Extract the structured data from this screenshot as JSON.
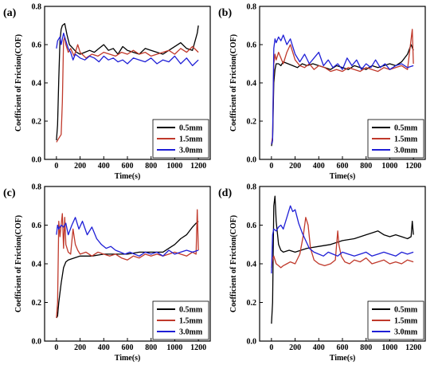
{
  "chart_data": [
    {
      "type": "line",
      "panel_label": "(a)",
      "xlabel": "Time(s)",
      "ylabel": "Coefficient of Friction(COF)",
      "xlim": [
        -100,
        1300
      ],
      "ylim": [
        0.0,
        0.8
      ],
      "xticks": [
        0,
        200,
        400,
        600,
        800,
        1000,
        1200
      ],
      "yticks": [
        0.0,
        0.2,
        0.4,
        0.6,
        0.8
      ],
      "legend_position": "bottom-right",
      "series": [
        {
          "name": "0.5mm",
          "color": "#000000",
          "x": [
            0,
            10,
            20,
            30,
            40,
            50,
            70,
            90,
            110,
            140,
            170,
            200,
            240,
            280,
            320,
            360,
            400,
            440,
            480,
            520,
            560,
            600,
            650,
            700,
            750,
            800,
            850,
            900,
            950,
            1000,
            1050,
            1100,
            1150,
            1190,
            1200
          ],
          "y": [
            0.1,
            0.18,
            0.42,
            0.62,
            0.68,
            0.7,
            0.71,
            0.65,
            0.6,
            0.58,
            0.56,
            0.55,
            0.56,
            0.57,
            0.56,
            0.58,
            0.6,
            0.57,
            0.58,
            0.55,
            0.59,
            0.57,
            0.56,
            0.55,
            0.58,
            0.57,
            0.56,
            0.55,
            0.57,
            0.59,
            0.61,
            0.58,
            0.57,
            0.66,
            0.7
          ]
        },
        {
          "name": "1.5mm",
          "color": "#c0392b",
          "x": [
            0,
            20,
            40,
            50,
            60,
            70,
            80,
            100,
            120,
            150,
            180,
            200,
            250,
            300,
            350,
            400,
            450,
            500,
            550,
            600,
            650,
            700,
            750,
            800,
            850,
            900,
            950,
            1000,
            1050,
            1100,
            1150,
            1200
          ],
          "y": [
            0.09,
            0.11,
            0.13,
            0.3,
            0.62,
            0.64,
            0.6,
            0.56,
            0.58,
            0.54,
            0.6,
            0.56,
            0.53,
            0.55,
            0.54,
            0.56,
            0.55,
            0.54,
            0.56,
            0.55,
            0.57,
            0.55,
            0.56,
            0.54,
            0.55,
            0.56,
            0.57,
            0.55,
            0.58,
            0.56,
            0.59,
            0.56
          ]
        },
        {
          "name": "3.0mm",
          "color": "#1f1fd6",
          "x": [
            0,
            10,
            20,
            30,
            40,
            60,
            80,
            100,
            120,
            140,
            160,
            200,
            240,
            280,
            320,
            360,
            400,
            440,
            480,
            520,
            560,
            600,
            650,
            700,
            750,
            800,
            850,
            900,
            950,
            1000,
            1050,
            1100,
            1150,
            1200
          ],
          "y": [
            0.58,
            0.62,
            0.63,
            0.64,
            0.6,
            0.66,
            0.62,
            0.58,
            0.56,
            0.52,
            0.55,
            0.53,
            0.52,
            0.54,
            0.53,
            0.51,
            0.54,
            0.52,
            0.53,
            0.51,
            0.52,
            0.5,
            0.53,
            0.52,
            0.51,
            0.53,
            0.5,
            0.52,
            0.51,
            0.54,
            0.5,
            0.53,
            0.49,
            0.52
          ]
        }
      ]
    },
    {
      "type": "line",
      "panel_label": "(b)",
      "xlabel": "Time(s)",
      "ylabel": "Coefficient of Friction(COF)",
      "xlim": [
        -100,
        1300
      ],
      "ylim": [
        0.0,
        0.8
      ],
      "xticks": [
        0,
        200,
        400,
        600,
        800,
        1000,
        1200
      ],
      "yticks": [
        0.0,
        0.2,
        0.4,
        0.6,
        0.8
      ],
      "legend_position": "bottom-right",
      "series": [
        {
          "name": "0.5mm",
          "color": "#000000",
          "x": [
            0,
            10,
            20,
            30,
            40,
            60,
            80,
            100,
            140,
            180,
            220,
            260,
            300,
            350,
            400,
            450,
            500,
            550,
            600,
            650,
            700,
            750,
            800,
            850,
            900,
            950,
            1000,
            1050,
            1100,
            1150,
            1180,
            1200
          ],
          "y": [
            0.07,
            0.1,
            0.4,
            0.47,
            0.5,
            0.5,
            0.49,
            0.51,
            0.5,
            0.49,
            0.48,
            0.5,
            0.49,
            0.5,
            0.49,
            0.48,
            0.47,
            0.49,
            0.48,
            0.47,
            0.49,
            0.48,
            0.47,
            0.49,
            0.48,
            0.49,
            0.5,
            0.49,
            0.51,
            0.55,
            0.6,
            0.57
          ]
        },
        {
          "name": "1.5mm",
          "color": "#c0392b",
          "x": [
            0,
            10,
            20,
            30,
            40,
            60,
            80,
            100,
            130,
            160,
            200,
            240,
            280,
            320,
            360,
            400,
            450,
            500,
            550,
            600,
            650,
            700,
            750,
            800,
            850,
            900,
            950,
            1000,
            1050,
            1100,
            1150,
            1190,
            1200
          ],
          "y": [
            0.08,
            0.12,
            0.5,
            0.55,
            0.52,
            0.56,
            0.53,
            0.5,
            0.56,
            0.6,
            0.52,
            0.49,
            0.48,
            0.5,
            0.47,
            0.49,
            0.48,
            0.46,
            0.47,
            0.46,
            0.48,
            0.47,
            0.46,
            0.48,
            0.47,
            0.46,
            0.48,
            0.47,
            0.48,
            0.49,
            0.47,
            0.68,
            0.5
          ]
        },
        {
          "name": "3.0mm",
          "color": "#1f1fd6",
          "x": [
            0,
            10,
            20,
            30,
            40,
            60,
            80,
            100,
            130,
            160,
            200,
            240,
            280,
            320,
            360,
            400,
            440,
            480,
            520,
            560,
            600,
            640,
            680,
            720,
            760,
            800,
            840,
            880,
            920,
            960,
            1000,
            1050,
            1100,
            1150,
            1200
          ],
          "y": [
            0.08,
            0.1,
            0.58,
            0.63,
            0.61,
            0.64,
            0.62,
            0.65,
            0.6,
            0.63,
            0.55,
            0.51,
            0.55,
            0.5,
            0.53,
            0.56,
            0.49,
            0.52,
            0.48,
            0.5,
            0.47,
            0.53,
            0.49,
            0.52,
            0.47,
            0.5,
            0.48,
            0.52,
            0.48,
            0.5,
            0.47,
            0.49,
            0.5,
            0.48,
            0.49
          ]
        }
      ]
    },
    {
      "type": "line",
      "panel_label": "(c)",
      "xlabel": "Time(s)",
      "ylabel": "Coefficient of Friction(COF)",
      "xlim": [
        -100,
        1300
      ],
      "ylim": [
        0.0,
        0.8
      ],
      "xticks": [
        0,
        200,
        400,
        600,
        800,
        1000,
        1200
      ],
      "yticks": [
        0.0,
        0.2,
        0.4,
        0.6,
        0.8
      ],
      "legend_position": "bottom-right",
      "series": [
        {
          "name": "0.5mm",
          "color": "#000000",
          "x": [
            0,
            10,
            20,
            40,
            60,
            80,
            100,
            150,
            200,
            300,
            400,
            500,
            600,
            700,
            800,
            900,
            950,
            1000,
            1050,
            1100,
            1150,
            1180,
            1200
          ],
          "y": [
            0.12,
            0.13,
            0.2,
            0.3,
            0.38,
            0.41,
            0.42,
            0.43,
            0.44,
            0.44,
            0.45,
            0.45,
            0.45,
            0.46,
            0.46,
            0.46,
            0.48,
            0.5,
            0.53,
            0.55,
            0.59,
            0.61,
            0.62
          ]
        },
        {
          "name": "1.5mm",
          "color": "#c0392b",
          "x": [
            0,
            10,
            20,
            30,
            40,
            50,
            60,
            70,
            80,
            100,
            120,
            140,
            160,
            180,
            200,
            250,
            300,
            350,
            400,
            450,
            500,
            550,
            600,
            650,
            700,
            750,
            800,
            850,
            900,
            950,
            1000,
            1050,
            1100,
            1150,
            1180,
            1190,
            1200
          ],
          "y": [
            0.12,
            0.2,
            0.62,
            0.54,
            0.6,
            0.66,
            0.48,
            0.64,
            0.5,
            0.46,
            0.45,
            0.58,
            0.5,
            0.47,
            0.45,
            0.46,
            0.44,
            0.46,
            0.45,
            0.44,
            0.45,
            0.43,
            0.42,
            0.44,
            0.43,
            0.45,
            0.44,
            0.45,
            0.44,
            0.45,
            0.46,
            0.45,
            0.44,
            0.46,
            0.45,
            0.68,
            0.47
          ]
        },
        {
          "name": "3.0mm",
          "color": "#1f1fd6",
          "x": [
            0,
            10,
            20,
            40,
            60,
            80,
            100,
            130,
            160,
            190,
            220,
            260,
            300,
            340,
            380,
            420,
            460,
            500,
            540,
            580,
            620,
            660,
            700,
            750,
            800,
            850,
            900,
            950,
            1000,
            1050,
            1100,
            1150,
            1200
          ],
          "y": [
            0.55,
            0.6,
            0.58,
            0.6,
            0.59,
            0.61,
            0.55,
            0.6,
            0.64,
            0.58,
            0.62,
            0.55,
            0.59,
            0.53,
            0.5,
            0.48,
            0.49,
            0.47,
            0.46,
            0.45,
            0.46,
            0.45,
            0.44,
            0.46,
            0.45,
            0.46,
            0.44,
            0.47,
            0.45,
            0.46,
            0.47,
            0.46,
            0.47
          ]
        }
      ]
    },
    {
      "type": "line",
      "panel_label": "(d)",
      "xlabel": "Time(s)",
      "ylabel": "Coefficient of Friction(COF)",
      "xlim": [
        -100,
        1300
      ],
      "ylim": [
        0.0,
        0.8
      ],
      "xticks": [
        0,
        200,
        400,
        600,
        800,
        1000,
        1200
      ],
      "yticks": [
        0.0,
        0.2,
        0.4,
        0.6,
        0.8
      ],
      "legend_position": "bottom-right",
      "series": [
        {
          "name": "0.5mm",
          "color": "#000000",
          "x": [
            0,
            10,
            20,
            30,
            40,
            60,
            80,
            100,
            150,
            200,
            300,
            400,
            500,
            600,
            700,
            800,
            850,
            900,
            950,
            1000,
            1050,
            1100,
            1150,
            1180,
            1190,
            1200
          ],
          "y": [
            0.09,
            0.2,
            0.7,
            0.75,
            0.62,
            0.5,
            0.47,
            0.46,
            0.47,
            0.46,
            0.48,
            0.49,
            0.5,
            0.52,
            0.53,
            0.55,
            0.56,
            0.57,
            0.55,
            0.54,
            0.55,
            0.54,
            0.53,
            0.54,
            0.62,
            0.55
          ]
        },
        {
          "name": "1.5mm",
          "color": "#c0392b",
          "x": [
            0,
            10,
            20,
            40,
            60,
            80,
            100,
            130,
            160,
            200,
            240,
            270,
            290,
            310,
            330,
            360,
            400,
            450,
            500,
            540,
            560,
            570,
            590,
            620,
            660,
            700,
            750,
            800,
            850,
            900,
            950,
            1000,
            1050,
            1100,
            1150,
            1200
          ],
          "y": [
            0.38,
            0.42,
            0.44,
            0.4,
            0.39,
            0.38,
            0.39,
            0.4,
            0.41,
            0.4,
            0.45,
            0.55,
            0.64,
            0.6,
            0.48,
            0.42,
            0.4,
            0.39,
            0.4,
            0.42,
            0.57,
            0.5,
            0.44,
            0.41,
            0.4,
            0.42,
            0.41,
            0.43,
            0.4,
            0.41,
            0.42,
            0.4,
            0.41,
            0.4,
            0.42,
            0.41
          ]
        },
        {
          "name": "3.0mm",
          "color": "#1f1fd6",
          "x": [
            0,
            10,
            20,
            40,
            60,
            80,
            100,
            130,
            160,
            180,
            200,
            230,
            260,
            290,
            320,
            360,
            400,
            440,
            480,
            520,
            560,
            600,
            650,
            700,
            750,
            800,
            850,
            900,
            950,
            1000,
            1050,
            1100,
            1150,
            1200
          ],
          "y": [
            0.35,
            0.55,
            0.58,
            0.57,
            0.59,
            0.6,
            0.58,
            0.64,
            0.7,
            0.67,
            0.68,
            0.61,
            0.56,
            0.52,
            0.48,
            0.46,
            0.45,
            0.44,
            0.46,
            0.45,
            0.44,
            0.46,
            0.45,
            0.44,
            0.45,
            0.46,
            0.44,
            0.45,
            0.46,
            0.45,
            0.44,
            0.46,
            0.45,
            0.46
          ]
        }
      ]
    }
  ]
}
